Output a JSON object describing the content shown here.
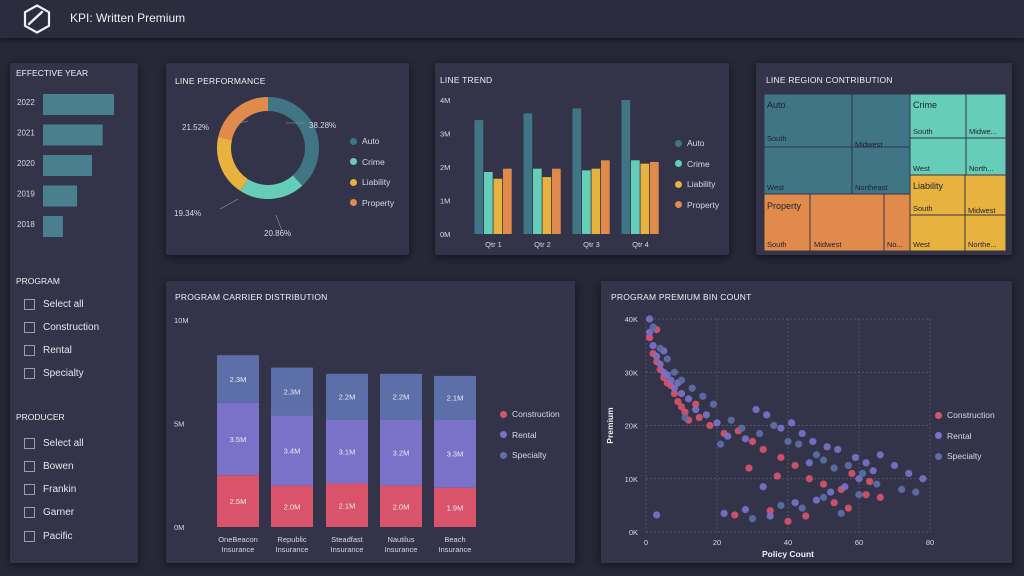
{
  "header": {
    "title": "KPI: Written Premium",
    "logo_icon": "hexagon-logo-icon"
  },
  "colors": {
    "auto": "#3f7585",
    "crime": "#66cdb8",
    "liability": "#e8b23f",
    "property": "#e08b4b",
    "construction": "#d9546a",
    "rental": "#7a72c9",
    "specialty": "#5c6fa8"
  },
  "slicers": {
    "year": {
      "title": "EFFECTIVE YEAR",
      "items": [
        {
          "label": "2022",
          "value": 1.0
        },
        {
          "label": "2021",
          "value": 0.84
        },
        {
          "label": "2020",
          "value": 0.69
        },
        {
          "label": "2019",
          "value": 0.48
        },
        {
          "label": "2018",
          "value": 0.28
        }
      ]
    },
    "program": {
      "title": "PROGRAM",
      "items": [
        "Select all",
        "Construction",
        "Rental",
        "Specialty"
      ]
    },
    "producer": {
      "title": "PRODUCER",
      "items": [
        "Select all",
        "Bowen",
        "Frankin",
        "Garner",
        "Pacific"
      ]
    }
  },
  "line_performance": {
    "title": "LINE PERFORMANCE",
    "chart_data": {
      "type": "pie",
      "categories": [
        "Auto",
        "Crime",
        "Liability",
        "Property"
      ],
      "values": [
        38.28,
        20.86,
        19.34,
        21.52
      ],
      "labels": [
        "38.28%",
        "20.86%",
        "19.34%",
        "21.52%"
      ],
      "legend": "right"
    }
  },
  "line_trend": {
    "title": "LINE TREND",
    "chart_data": {
      "type": "bar",
      "categories": [
        "Qtr 1",
        "Qtr 2",
        "Qtr 3",
        "Qtr 4"
      ],
      "series": [
        {
          "name": "Auto",
          "values": [
            3.4,
            3.6,
            3.75,
            4.0
          ]
        },
        {
          "name": "Crime",
          "values": [
            1.85,
            1.95,
            1.9,
            2.2
          ]
        },
        {
          "name": "Liability",
          "values": [
            1.65,
            1.7,
            1.95,
            2.1
          ]
        },
        {
          "name": "Property",
          "values": [
            1.95,
            1.95,
            2.2,
            2.15
          ]
        }
      ],
      "yticks": [
        "0M",
        "1M",
        "2M",
        "3M",
        "4M"
      ],
      "ylim": [
        0,
        4
      ],
      "legend": "right"
    }
  },
  "line_region": {
    "title": "LINE REGION CONTRIBUTION",
    "chart_data": {
      "type": "treemap",
      "groups": [
        {
          "name": "Auto",
          "regions": [
            "South",
            "Midwest",
            "West",
            "Northeast"
          ]
        },
        {
          "name": "Crime",
          "regions": [
            "South",
            "Midwe...",
            "West",
            "North..."
          ]
        },
        {
          "name": "Liability",
          "regions": [
            "South",
            "Midwest",
            "West",
            "Northe..."
          ]
        },
        {
          "name": "Property",
          "regions": [
            "South",
            "Midwest",
            "No..."
          ]
        }
      ]
    }
  },
  "carrier_distribution": {
    "title": "PROGRAM CARRIER DISTRIBUTION",
    "chart_data": {
      "type": "bar",
      "stacked": true,
      "categories": [
        "OneBeacon\nInsurance",
        "Republic\nInsurance",
        "Steadfast\nInsurance",
        "Nautilus\nInsurance",
        "Beach\nInsurance"
      ],
      "series": [
        {
          "name": "Construction",
          "values": [
            2.5,
            2.0,
            2.1,
            2.0,
            1.9
          ],
          "labels": [
            "2.5M",
            "2.0M",
            "2.1M",
            "2.0M",
            "1.9M"
          ]
        },
        {
          "name": "Rental",
          "values": [
            3.5,
            3.4,
            3.1,
            3.2,
            3.3
          ],
          "labels": [
            "3.5M",
            "3.4M",
            "3.1M",
            "3.2M",
            "3.3M"
          ]
        },
        {
          "name": "Specialty",
          "values": [
            2.3,
            2.3,
            2.2,
            2.2,
            2.1
          ],
          "labels": [
            "2.3M",
            "2.3M",
            "2.2M",
            "2.2M",
            "2.1M"
          ]
        }
      ],
      "yticks": [
        "0M",
        "5M",
        "10M"
      ],
      "ylim": [
        0,
        10
      ],
      "legend": "right"
    }
  },
  "premium_bin": {
    "title": "PROGRAM PREMIUM BIN COUNT",
    "chart_data": {
      "type": "scatter",
      "xlabel": "Policy Count",
      "ylabel": "Premium",
      "xlim": [
        0,
        80
      ],
      "ylim": [
        0,
        40000
      ],
      "xticks": [
        "0",
        "20",
        "40",
        "60",
        "80"
      ],
      "yticks": [
        "0K",
        "10K",
        "20K",
        "30K",
        "40K"
      ],
      "legend": "right",
      "series": [
        {
          "name": "Construction",
          "points": [
            [
              1,
              36500
            ],
            [
              2,
              33500
            ],
            [
              3,
              32000
            ],
            [
              4,
              30500
            ],
            [
              5,
              29000
            ],
            [
              6,
              28000
            ],
            [
              7,
              27500
            ],
            [
              8,
              26000
            ],
            [
              9,
              24500
            ],
            [
              10,
              23500
            ],
            [
              11,
              22500
            ],
            [
              12,
              21000
            ],
            [
              15,
              21500
            ],
            [
              18,
              20000
            ],
            [
              22,
              18500
            ],
            [
              26,
              19000
            ],
            [
              30,
              17000
            ],
            [
              33,
              15500
            ],
            [
              38,
              14000
            ],
            [
              42,
              12500
            ],
            [
              46,
              10000
            ],
            [
              50,
              9000
            ],
            [
              55,
              8000
            ],
            [
              58,
              11000
            ],
            [
              62,
              7000
            ],
            [
              66,
              6500
            ],
            [
              25,
              3200
            ],
            [
              35,
              4000
            ],
            [
              40,
              2000
            ],
            [
              45,
              3000
            ],
            [
              53,
              5500
            ],
            [
              57,
              4500
            ],
            [
              63,
              9500
            ],
            [
              3,
              38000
            ],
            [
              14,
              24000
            ],
            [
              29,
              12000
            ],
            [
              37,
              10500
            ]
          ]
        },
        {
          "name": "Rental",
          "points": [
            [
              1,
              40000
            ],
            [
              1,
              37500
            ],
            [
              2,
              35000
            ],
            [
              3,
              33000
            ],
            [
              4,
              31500
            ],
            [
              5,
              30000
            ],
            [
              6,
              29500
            ],
            [
              7,
              28500
            ],
            [
              8,
              27000
            ],
            [
              10,
              26000
            ],
            [
              12,
              25000
            ],
            [
              14,
              23000
            ],
            [
              17,
              22000
            ],
            [
              20,
              20500
            ],
            [
              23,
              18000
            ],
            [
              28,
              17500
            ],
            [
              31,
              23000
            ],
            [
              34,
              22000
            ],
            [
              38,
              19500
            ],
            [
              41,
              20500
            ],
            [
              44,
              18500
            ],
            [
              47,
              17000
            ],
            [
              51,
              16000
            ],
            [
              54,
              15500
            ],
            [
              59,
              14000
            ],
            [
              62,
              13000
            ],
            [
              66,
              14500
            ],
            [
              70,
              12500
            ],
            [
              74,
              11000
            ],
            [
              78,
              10000
            ],
            [
              3,
              3200
            ],
            [
              22,
              3500
            ],
            [
              28,
              4200
            ],
            [
              35,
              3000
            ],
            [
              42,
              5500
            ],
            [
              48,
              6000
            ],
            [
              52,
              7500
            ],
            [
              56,
              8500
            ],
            [
              60,
              10000
            ],
            [
              64,
              11500
            ],
            [
              5,
              34000
            ],
            [
              9,
              28000
            ],
            [
              33,
              8500
            ],
            [
              46,
              13000
            ]
          ]
        },
        {
          "name": "Specialty",
          "points": [
            [
              2,
              38500
            ],
            [
              4,
              34500
            ],
            [
              6,
              32500
            ],
            [
              8,
              30000
            ],
            [
              10,
              28500
            ],
            [
              13,
              27000
            ],
            [
              16,
              25500
            ],
            [
              19,
              24000
            ],
            [
              24,
              21000
            ],
            [
              27,
              19500
            ],
            [
              32,
              18500
            ],
            [
              36,
              20000
            ],
            [
              40,
              17000
            ],
            [
              43,
              16500
            ],
            [
              48,
              14500
            ],
            [
              50,
              13500
            ],
            [
              53,
              12000
            ],
            [
              57,
              12500
            ],
            [
              61,
              11000
            ],
            [
              65,
              9000
            ],
            [
              72,
              8000
            ],
            [
              76,
              7500
            ],
            [
              30,
              2500
            ],
            [
              38,
              5000
            ],
            [
              44,
              4500
            ],
            [
              50,
              6500
            ],
            [
              55,
              3500
            ],
            [
              60,
              7000
            ],
            [
              11,
              21500
            ],
            [
              21,
              16500
            ]
          ]
        }
      ]
    }
  }
}
